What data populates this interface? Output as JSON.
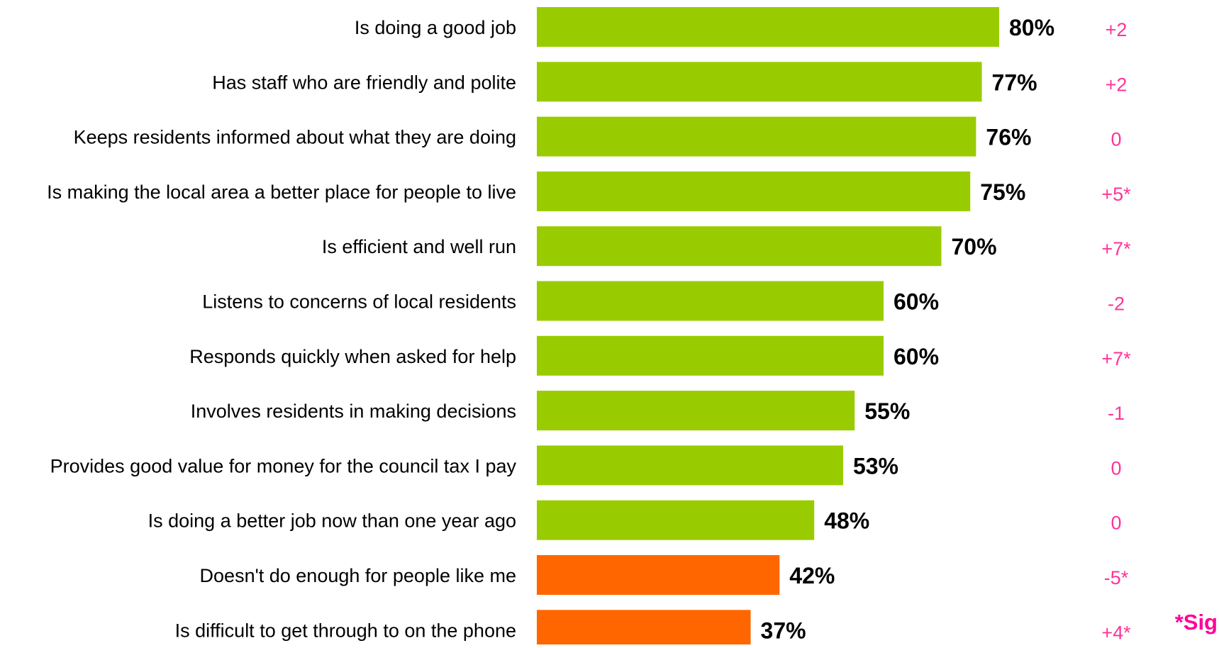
{
  "chart_data": {
    "type": "bar",
    "orientation": "horizontal",
    "categories": [
      "Is doing a good job",
      "Has staff who are friendly and polite",
      "Keeps residents informed about what they are doing",
      "Is making the local area a better place for people to live",
      "Is efficient and well run",
      "Listens to concerns of local residents",
      "Responds quickly when asked for help",
      "Involves residents in making decisions",
      "Provides good value for money for the council tax I pay",
      "Is doing a better job now than one year ago",
      "Doesn't do enough for people like me",
      "Is difficult to get through to on the phone"
    ],
    "values": [
      80,
      77,
      76,
      75,
      70,
      60,
      60,
      55,
      53,
      48,
      42,
      37
    ],
    "value_labels": [
      "80%",
      "77%",
      "76%",
      "75%",
      "70%",
      "60%",
      "60%",
      "55%",
      "53%",
      "48%",
      "42%",
      "37%"
    ],
    "changes": [
      "+2",
      "+2",
      "0",
      "+5*",
      "+7*",
      "-2",
      "+7*",
      "-1",
      "0",
      "0",
      "-5*",
      "+4*"
    ],
    "bar_colors": [
      "#99cc00",
      "#99cc00",
      "#99cc00",
      "#99cc00",
      "#99cc00",
      "#99cc00",
      "#99cc00",
      "#99cc00",
      "#99cc00",
      "#99cc00",
      "#ff6600",
      "#ff6600"
    ],
    "change_color": "#ff3399",
    "footnote": "*Sig",
    "footnote_color": "#ff0099",
    "xlim": [
      0,
      100
    ],
    "grid": false,
    "legend": "none"
  }
}
